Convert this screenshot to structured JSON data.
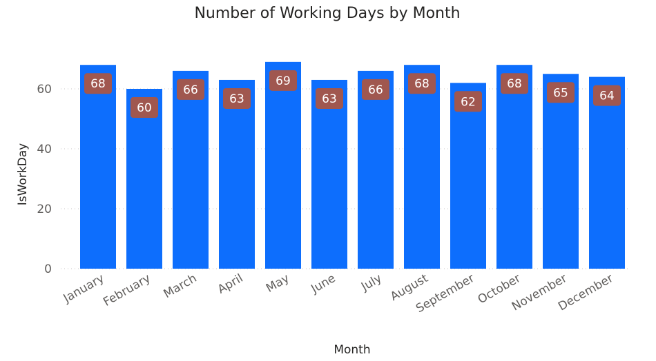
{
  "colors": {
    "bar": "#0d6efd",
    "data_label_bg": "#a0574f",
    "data_label_text": "#ffffff",
    "gridline": "#c8c6c4",
    "tick_text": "#605e5c",
    "title_text": "#252423"
  },
  "chart_data": {
    "type": "bar",
    "title": "Number of Working Days by Month",
    "xlabel": "Month",
    "ylabel": "IsWorkDay",
    "categories": [
      "January",
      "February",
      "March",
      "April",
      "May",
      "June",
      "July",
      "August",
      "September",
      "October",
      "November",
      "December"
    ],
    "values": [
      68,
      60,
      66,
      63,
      69,
      63,
      66,
      68,
      62,
      68,
      65,
      64
    ],
    "ylim": [
      0,
      72
    ],
    "yticks": [
      0,
      20,
      40,
      60
    ],
    "grid": true,
    "legend": "none"
  }
}
